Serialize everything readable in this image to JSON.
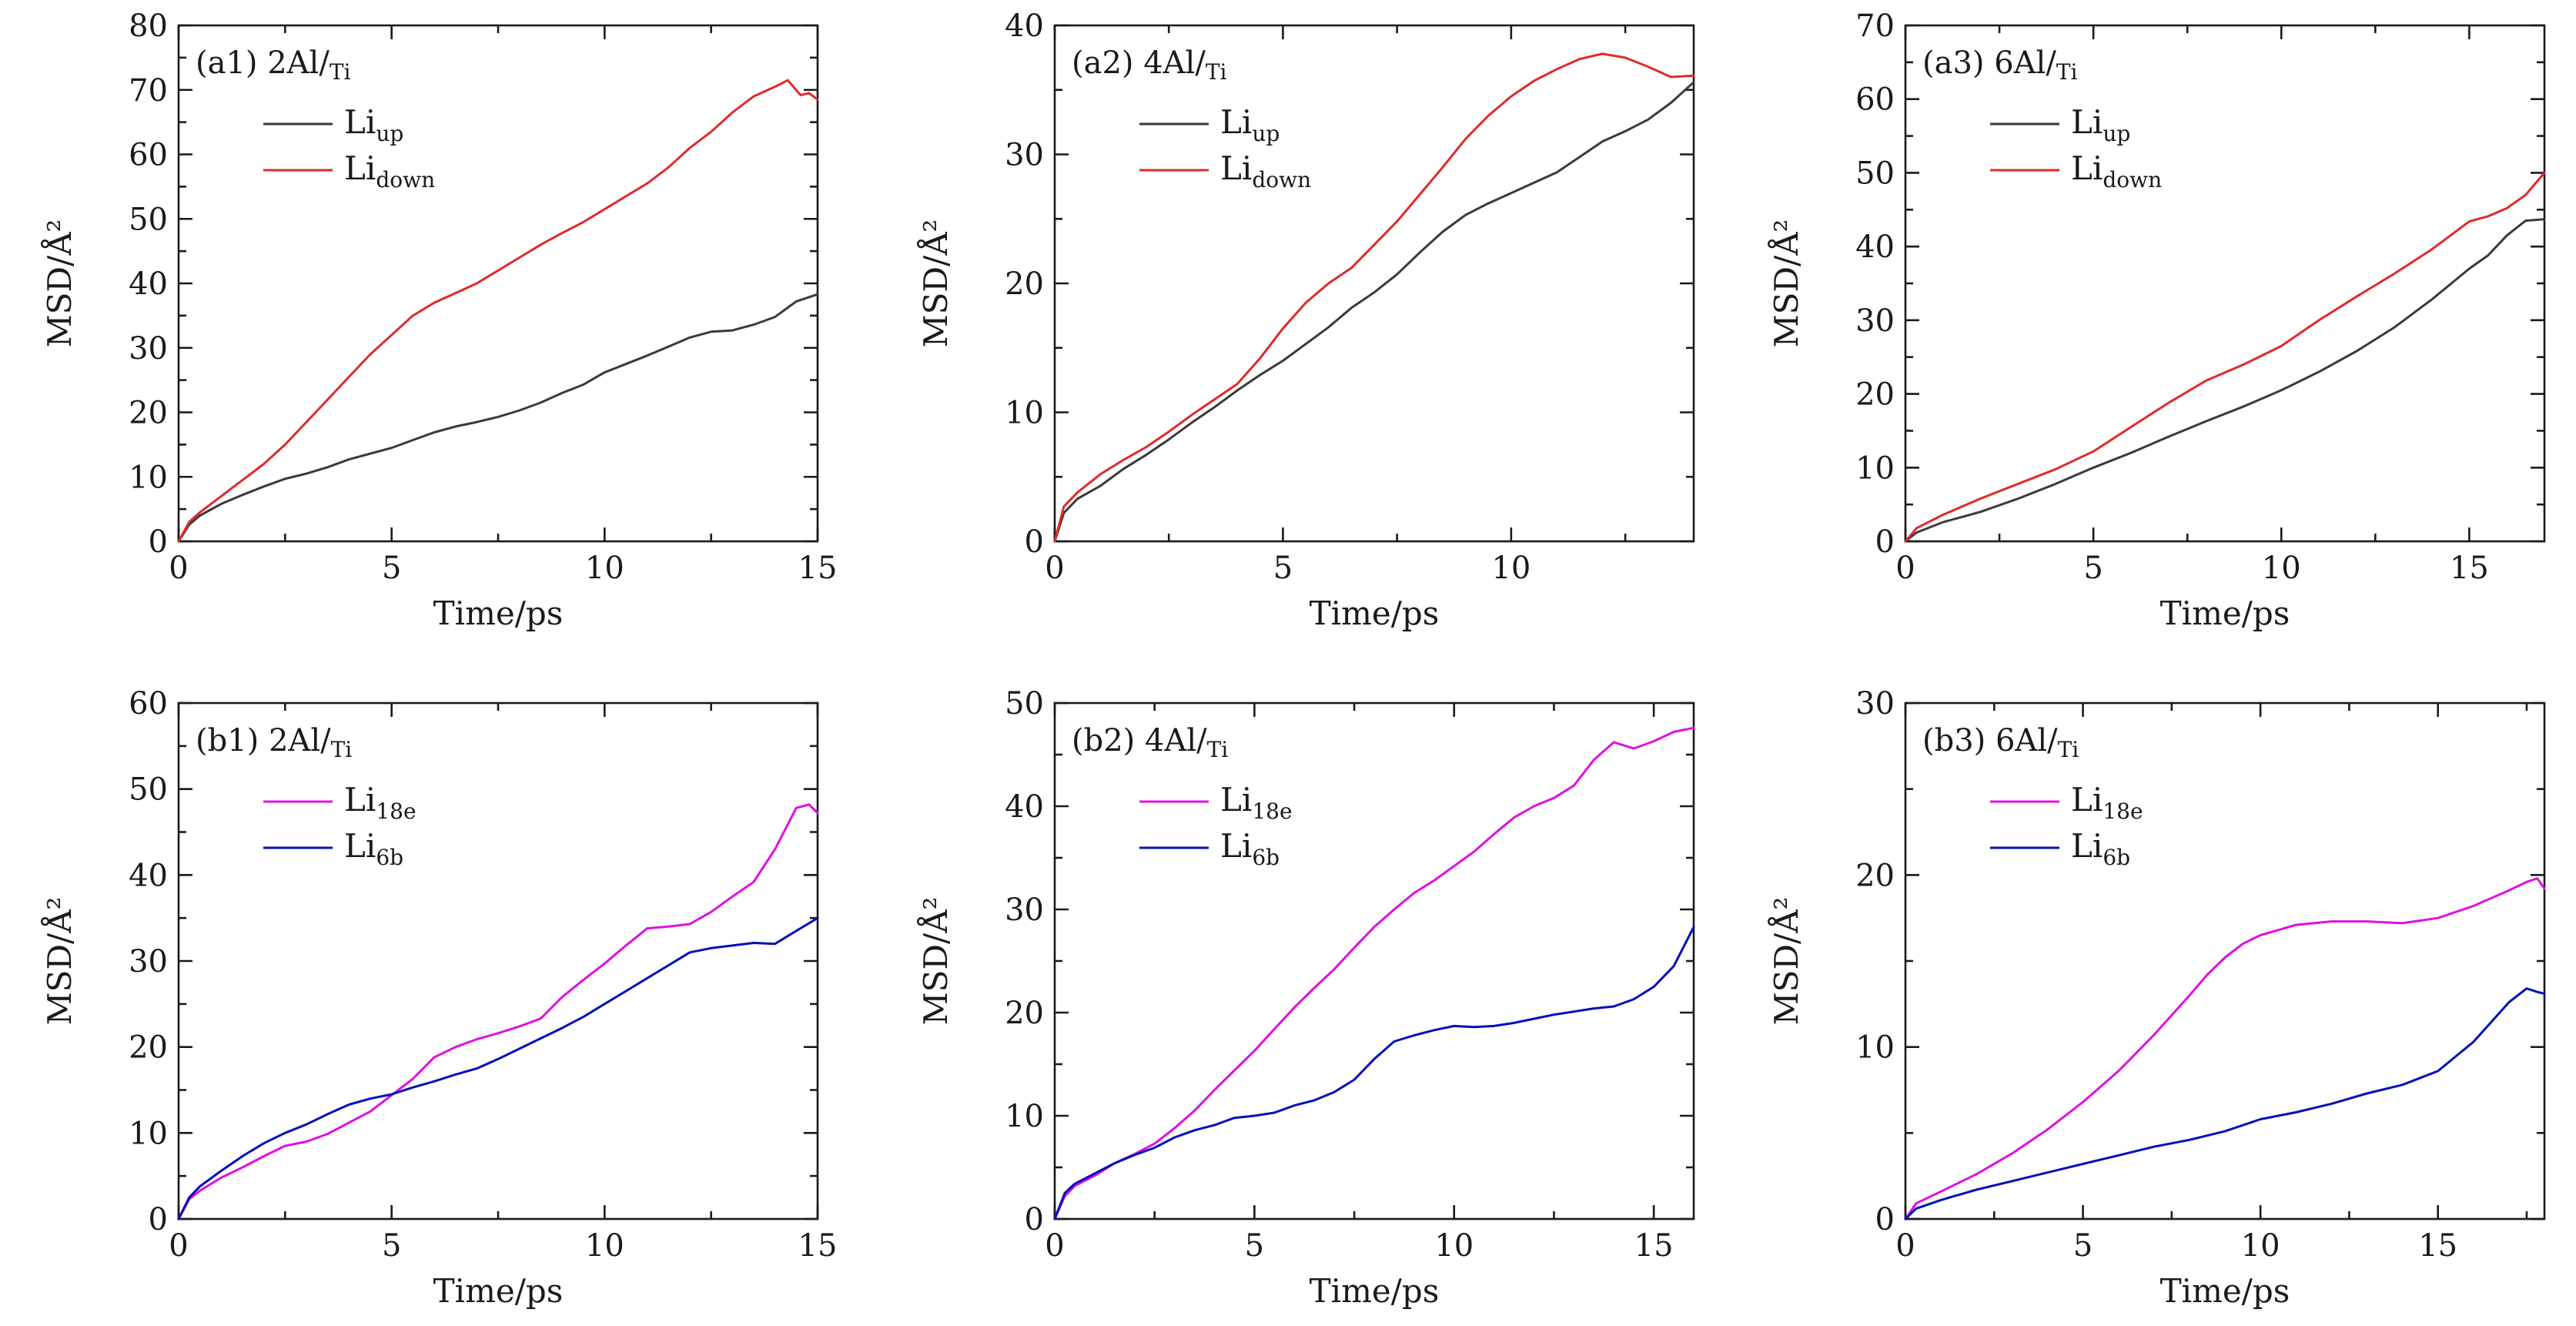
{
  "colors": {
    "up": "#3a3a3a",
    "down": "#e02a2a",
    "e18": "#e010e0",
    "b6": "#0010b8"
  },
  "chart_data": [
    {
      "type": "line",
      "panel_label": "(a1) 2Al/",
      "panel_sub": "Ti",
      "xlabel": "Time/ps",
      "ylabel": "MSD/Å²",
      "xlim": [
        0,
        15
      ],
      "ylim": [
        0,
        80
      ],
      "xticks": [
        "0",
        "5",
        "10",
        "15"
      ],
      "yticks": [
        "0",
        "10",
        "20",
        "30",
        "40",
        "50",
        "60",
        "70",
        "80"
      ],
      "grid": false,
      "legend_position": "top-left",
      "series": [
        {
          "name": "Li",
          "name_sub": "up",
          "color": "#3a3a3a",
          "x": [
            0,
            0.25,
            0.5,
            1,
            1.5,
            2,
            2.5,
            3,
            3.5,
            4,
            4.5,
            5,
            5.5,
            6,
            6.5,
            7,
            7.5,
            8,
            8.5,
            9,
            9.5,
            10,
            10.5,
            11,
            11.5,
            12,
            12.5,
            13,
            13.5,
            14,
            14.5,
            15
          ],
          "y": [
            0,
            2.6,
            4,
            5.8,
            7.2,
            8.5,
            9.7,
            10.5,
            11.5,
            12.7,
            13.6,
            14.5,
            15.7,
            16.9,
            17.8,
            18.5,
            19.3,
            20.3,
            21.5,
            23,
            24.3,
            26.2,
            27.5,
            28.8,
            30.2,
            31.6,
            32.5,
            32.7,
            33.6,
            34.8,
            37.2,
            38.3
          ]
        },
        {
          "name": "Li",
          "name_sub": "down",
          "color": "#e02a2a",
          "x": [
            0,
            0.25,
            0.5,
            1,
            1.5,
            2,
            2.5,
            3,
            3.5,
            4,
            4.5,
            5,
            5.5,
            6,
            6.5,
            7,
            7.5,
            8,
            8.5,
            9,
            9.5,
            10,
            10.5,
            11,
            11.5,
            12,
            12.5,
            13,
            13.5,
            14,
            14.3,
            14.6,
            14.8,
            15
          ],
          "y": [
            0,
            3,
            4.5,
            7,
            9.5,
            12,
            15,
            18.5,
            22,
            25.5,
            29,
            32,
            35,
            37,
            38.5,
            40,
            42,
            44,
            46,
            47.8,
            49.5,
            51.5,
            53.5,
            55.5,
            58,
            61,
            63.5,
            66.5,
            69,
            70.5,
            71.5,
            69.2,
            69.5,
            68.5
          ]
        }
      ]
    },
    {
      "type": "line",
      "panel_label": "(a2) 4Al/",
      "panel_sub": "Ti",
      "xlabel": "Time/ps",
      "ylabel": "MSD/Å²",
      "xlim": [
        0,
        14
      ],
      "ylim": [
        0,
        40
      ],
      "xticks": [
        "0",
        "5",
        "10"
      ],
      "yticks": [
        "0",
        "10",
        "20",
        "30",
        "40"
      ],
      "grid": false,
      "legend_position": "top-left",
      "series": [
        {
          "name": "Li",
          "name_sub": "up",
          "color": "#3a3a3a",
          "x": [
            0,
            0.2,
            0.5,
            1,
            1.5,
            2,
            2.5,
            3,
            3.5,
            4,
            4.5,
            5,
            5.5,
            6,
            6.5,
            7,
            7.5,
            8,
            8.5,
            9,
            9.5,
            10,
            10.5,
            11,
            11.5,
            12,
            12.5,
            13,
            13.5,
            14
          ],
          "y": [
            0,
            2.2,
            3.3,
            4.3,
            5.6,
            6.7,
            7.9,
            9.2,
            10.4,
            11.7,
            12.9,
            14,
            15.3,
            16.6,
            18.1,
            19.3,
            20.7,
            22.4,
            24,
            25.3,
            26.2,
            27,
            27.8,
            28.6,
            29.8,
            31,
            31.8,
            32.7,
            34,
            35.6
          ]
        },
        {
          "name": "Li",
          "name_sub": "down",
          "color": "#e02a2a",
          "x": [
            0,
            0.2,
            0.5,
            1,
            1.5,
            2,
            2.5,
            3,
            3.5,
            4,
            4.5,
            5,
            5.5,
            6,
            6.5,
            7,
            7.5,
            8,
            8.5,
            9,
            9.5,
            10,
            10.5,
            11,
            11.5,
            12,
            12.5,
            13,
            13.5,
            14
          ],
          "y": [
            0,
            2.7,
            3.8,
            5.2,
            6.3,
            7.3,
            8.5,
            9.8,
            11,
            12.2,
            14.2,
            16.5,
            18.5,
            20,
            21.2,
            23,
            24.8,
            26.9,
            29,
            31.2,
            33,
            34.5,
            35.7,
            36.6,
            37.4,
            37.8,
            37.5,
            36.8,
            36,
            36.1
          ]
        }
      ]
    },
    {
      "type": "line",
      "panel_label": "(a3) 6Al/",
      "panel_sub": "Ti",
      "xlabel": "Time/ps",
      "ylabel": "MSD/Å²",
      "xlim": [
        0,
        17
      ],
      "ylim": [
        0,
        70
      ],
      "xticks": [
        "0",
        "5",
        "10",
        "15"
      ],
      "yticks": [
        "0",
        "10",
        "20",
        "30",
        "40",
        "50",
        "60",
        "70"
      ],
      "grid": false,
      "legend_position": "top-left",
      "series": [
        {
          "name": "Li",
          "name_sub": "up",
          "color": "#3a3a3a",
          "x": [
            0,
            0.3,
            1,
            2,
            3,
            4,
            5,
            6,
            7,
            8,
            9,
            10,
            11,
            12,
            13,
            14,
            15,
            15.5,
            16,
            16.5,
            17
          ],
          "y": [
            0,
            1.2,
            2.6,
            4,
            5.8,
            7.8,
            10,
            12,
            14.2,
            16.3,
            18.3,
            20.5,
            23,
            25.8,
            29,
            32.8,
            37,
            38.8,
            41.5,
            43.5,
            43.7
          ]
        },
        {
          "name": "Li",
          "name_sub": "down",
          "color": "#e02a2a",
          "x": [
            0,
            0.3,
            1,
            2,
            3,
            4,
            5,
            6,
            7,
            8,
            9,
            10,
            11,
            12,
            13,
            14,
            15,
            15.5,
            16,
            16.5,
            17
          ],
          "y": [
            0,
            1.8,
            3.6,
            5.8,
            7.8,
            9.8,
            12.2,
            15.5,
            18.8,
            21.8,
            24,
            26.5,
            30,
            33.2,
            36.3,
            39.6,
            43.4,
            44.1,
            45.2,
            47,
            50
          ]
        }
      ]
    },
    {
      "type": "line",
      "panel_label": "(b1) 2Al/",
      "panel_sub": "Ti",
      "xlabel": "Time/ps",
      "ylabel": "MSD/Å²",
      "xlim": [
        0,
        15
      ],
      "ylim": [
        0,
        60
      ],
      "xticks": [
        "0",
        "5",
        "10",
        "15"
      ],
      "yticks": [
        "0",
        "10",
        "20",
        "30",
        "40",
        "50",
        "60"
      ],
      "grid": false,
      "legend_position": "top-left",
      "series": [
        {
          "name": "Li",
          "name_sub": "18e",
          "color": "#e010e0",
          "x": [
            0,
            0.25,
            0.5,
            1,
            1.5,
            2,
            2.5,
            3,
            3.5,
            4,
            4.5,
            5,
            5.5,
            6,
            6.5,
            7,
            7.5,
            8,
            8.5,
            9,
            9.5,
            10,
            10.5,
            11,
            11.5,
            12,
            12.5,
            13,
            13.5,
            14,
            14.5,
            14.8,
            15
          ],
          "y": [
            0,
            2.3,
            3.3,
            4.8,
            6,
            7.3,
            8.5,
            9,
            9.9,
            11.2,
            12.5,
            14.4,
            16.3,
            18.8,
            20,
            20.9,
            21.6,
            22.4,
            23.3,
            25.8,
            27.8,
            29.7,
            31.8,
            33.8,
            34,
            34.3,
            35.7,
            37.5,
            39.2,
            43,
            47.8,
            48.2,
            47.2
          ]
        },
        {
          "name": "Li",
          "name_sub": "6b",
          "color": "#0010b8",
          "x": [
            0,
            0.25,
            0.5,
            1,
            1.5,
            2,
            2.5,
            3,
            3.5,
            4,
            4.5,
            5,
            5.5,
            6,
            6.5,
            7,
            7.5,
            8,
            8.5,
            9,
            9.5,
            10,
            10.5,
            11,
            11.5,
            12,
            12.5,
            13,
            13.5,
            14,
            14.5,
            15
          ],
          "y": [
            0,
            2.5,
            3.8,
            5.6,
            7.3,
            8.8,
            10,
            11,
            12.2,
            13.3,
            14,
            14.5,
            15.3,
            16,
            16.8,
            17.5,
            18.6,
            19.8,
            21,
            22.2,
            23.5,
            25,
            26.5,
            28,
            29.5,
            31,
            31.5,
            31.8,
            32.1,
            32,
            33.5,
            35
          ]
        }
      ]
    },
    {
      "type": "line",
      "panel_label": "(b2) 4Al/",
      "panel_sub": "Ti",
      "xlabel": "Time/ps",
      "ylabel": "MSD/Å²",
      "xlim": [
        0,
        16
      ],
      "ylim": [
        0,
        50
      ],
      "xticks": [
        "0",
        "5",
        "10",
        "15"
      ],
      "yticks": [
        "0",
        "10",
        "20",
        "30",
        "40",
        "50"
      ],
      "grid": false,
      "legend_position": "top-left",
      "series": [
        {
          "name": "Li",
          "name_sub": "18e",
          "color": "#e010e0",
          "x": [
            0,
            0.25,
            0.5,
            1,
            1.5,
            2,
            2.5,
            3,
            3.5,
            4,
            4.5,
            5,
            5.5,
            6,
            6.5,
            7,
            7.5,
            8,
            8.5,
            9,
            9.5,
            10,
            10.5,
            11,
            11.5,
            12,
            12.5,
            13,
            13.5,
            14,
            14.5,
            15,
            15.5,
            16
          ],
          "y": [
            0,
            2.2,
            3.2,
            4.2,
            5.4,
            6.3,
            7.3,
            8.8,
            10.5,
            12.5,
            14.4,
            16.3,
            18.4,
            20.5,
            22.4,
            24.2,
            26.3,
            28.3,
            30,
            31.6,
            32.8,
            34.2,
            35.6,
            37.3,
            38.9,
            40,
            40.8,
            42,
            44.5,
            46.2,
            45.6,
            46.3,
            47.2,
            47.6
          ]
        },
        {
          "name": "Li",
          "name_sub": "6b",
          "color": "#0010b8",
          "x": [
            0,
            0.25,
            0.5,
            1,
            1.5,
            2,
            2.5,
            3,
            3.5,
            4,
            4.5,
            5,
            5.5,
            6,
            6.5,
            7,
            7.5,
            8,
            8.5,
            9,
            9.5,
            10,
            10.5,
            11,
            11.5,
            12,
            12.5,
            13,
            13.5,
            14,
            14.5,
            15,
            15.5,
            16
          ],
          "y": [
            0,
            2.5,
            3.4,
            4.4,
            5.4,
            6.2,
            6.9,
            7.9,
            8.6,
            9.1,
            9.8,
            10,
            10.3,
            11,
            11.5,
            12.3,
            13.5,
            15.5,
            17.2,
            17.8,
            18.3,
            18.7,
            18.6,
            18.7,
            19,
            19.4,
            19.8,
            20.1,
            20.4,
            20.6,
            21.3,
            22.5,
            24.5,
            28.3
          ]
        }
      ]
    },
    {
      "type": "line",
      "panel_label": "(b3) 6Al/",
      "panel_sub": "Ti",
      "xlabel": "Time/ps",
      "ylabel": "MSD/Å²",
      "xlim": [
        0,
        18
      ],
      "ylim": [
        0,
        30
      ],
      "xticks": [
        "0",
        "5",
        "10",
        "15"
      ],
      "yticks": [
        "0",
        "10",
        "20",
        "30"
      ],
      "grid": false,
      "legend_position": "top-left",
      "series": [
        {
          "name": "Li",
          "name_sub": "18e",
          "color": "#e010e0",
          "x": [
            0,
            0.3,
            1,
            2,
            3,
            4,
            5,
            6,
            7,
            8,
            8.5,
            9,
            9.5,
            10,
            10.5,
            11,
            12,
            13,
            14,
            15,
            16,
            17,
            17.5,
            17.8,
            18
          ],
          "y": [
            0,
            0.9,
            1.6,
            2.6,
            3.8,
            5.2,
            6.8,
            8.6,
            10.7,
            13,
            14.2,
            15.2,
            16,
            16.5,
            16.8,
            17.1,
            17.3,
            17.3,
            17.2,
            17.5,
            18.2,
            19.1,
            19.6,
            19.8,
            19.2
          ]
        },
        {
          "name": "Li",
          "name_sub": "6b",
          "color": "#0010b8",
          "x": [
            0,
            0.3,
            1,
            2,
            3,
            4,
            5,
            6,
            7,
            8,
            9,
            10,
            11,
            12,
            13,
            14,
            15,
            16,
            17,
            17.5,
            17.8,
            18
          ],
          "y": [
            0,
            0.6,
            1.1,
            1.7,
            2.2,
            2.7,
            3.2,
            3.7,
            4.2,
            4.6,
            5.1,
            5.8,
            6.2,
            6.7,
            7.3,
            7.8,
            8.6,
            10.3,
            12.6,
            13.4,
            13.2,
            13.1
          ]
        }
      ]
    }
  ]
}
